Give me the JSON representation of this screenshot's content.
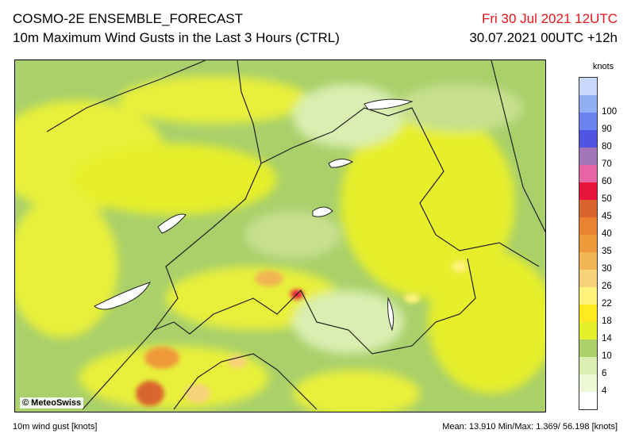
{
  "header": {
    "title": "COSMO-2E ENSEMBLE_FORECAST",
    "subtitle": "10m Maximum Wind Gusts in the Last 3 Hours (CTRL)",
    "valid_time": "Fri 30 Jul 2021 12UTC",
    "run_time": "30.07.2021 00UTC +12h"
  },
  "map": {
    "copyright": "© MeteoSwiss"
  },
  "legend": {
    "units": "knots",
    "bins": [
      {
        "label": "",
        "color": "#ffffff"
      },
      {
        "label": "4",
        "color": "#eef7d6"
      },
      {
        "label": "6",
        "color": "#d9eeb0"
      },
      {
        "label": "10",
        "color": "#aad06a"
      },
      {
        "label": "14",
        "color": "#e6f02a"
      },
      {
        "label": "18",
        "color": "#ffea1f"
      },
      {
        "label": "22",
        "color": "#fff27a"
      },
      {
        "label": "26",
        "color": "#f6d27a"
      },
      {
        "label": "30",
        "color": "#f2b553"
      },
      {
        "label": "35",
        "color": "#ee9a3a"
      },
      {
        "label": "40",
        "color": "#e9832f"
      },
      {
        "label": "45",
        "color": "#d9652d"
      },
      {
        "label": "50",
        "color": "#e8143c"
      },
      {
        "label": "60",
        "color": "#e865a5"
      },
      {
        "label": "70",
        "color": "#a276b6"
      },
      {
        "label": "80",
        "color": "#4f55e2"
      },
      {
        "label": "90",
        "color": "#6a82ee"
      },
      {
        "label": "100",
        "color": "#91aff5"
      },
      {
        "label": "",
        "color": "#c7d8fb"
      }
    ]
  },
  "footer": {
    "left": "10m wind gust [knots]",
    "right": "Mean: 13.910 Min/Max:  1.369/ 56.198 [knots]"
  }
}
